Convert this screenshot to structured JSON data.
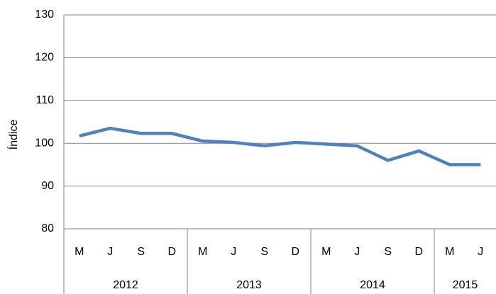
{
  "chart_data": {
    "type": "line",
    "ylabel": "Índice",
    "groups": [
      {
        "label": "2012",
        "categories": [
          "M",
          "J",
          "S",
          "D"
        ]
      },
      {
        "label": "2013",
        "categories": [
          "M",
          "J",
          "S",
          "D"
        ]
      },
      {
        "label": "2014",
        "categories": [
          "M",
          "J",
          "S",
          "D"
        ]
      },
      {
        "label": "2015",
        "categories": [
          "M",
          "J"
        ]
      }
    ],
    "values": [
      101.7,
      103.5,
      102.3,
      102.3,
      100.5,
      100.2,
      99.4,
      100.2,
      99.8,
      99.4,
      96,
      98.2,
      95,
      95
    ],
    "color": "#4f81bd",
    "ylim": [
      80,
      130
    ],
    "yticks": [
      80,
      90,
      100,
      110,
      120,
      130
    ],
    "grid": true
  }
}
